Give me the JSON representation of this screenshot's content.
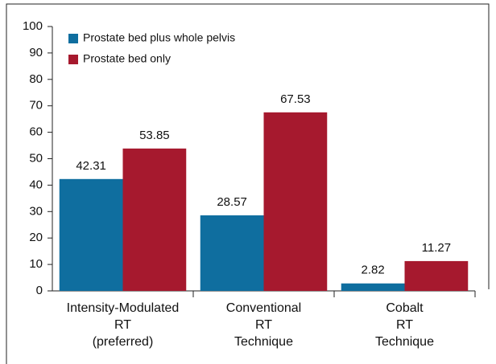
{
  "chart_data": {
    "type": "bar",
    "categories": [
      "Intensity-Modulated\nRT\n(preferred)",
      "Conventional\nRT\nTechnique",
      "Cobalt\nRT\nTechnique"
    ],
    "series": [
      {
        "name": "Prostate bed plus whole pelvis",
        "color": "#0f6e9f",
        "values": [
          42.31,
          28.57,
          2.82
        ]
      },
      {
        "name": "Prostate bed only",
        "color": "#a6192e",
        "values": [
          53.85,
          67.53,
          11.27
        ]
      }
    ],
    "ylim": [
      0,
      100
    ],
    "yticks": [
      0,
      10,
      20,
      30,
      40,
      50,
      60,
      70,
      80,
      90,
      100
    ],
    "legend": "top-left"
  }
}
